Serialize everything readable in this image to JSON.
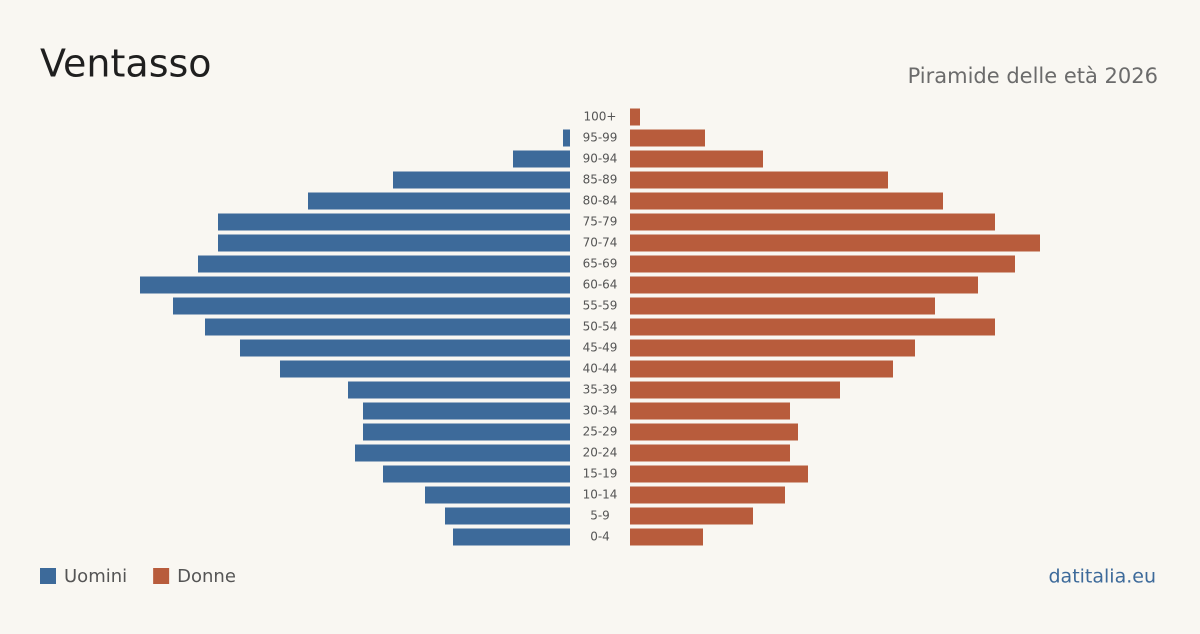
{
  "chart_data": {
    "type": "pyramid",
    "title": "Ventasso",
    "subtitle": "Piramide delle età 2026",
    "source": "datitalia.eu",
    "categories": [
      "100+",
      "95-99",
      "90-94",
      "85-89",
      "80-84",
      "75-79",
      "70-74",
      "65-69",
      "60-64",
      "55-59",
      "50-54",
      "45-49",
      "40-44",
      "35-39",
      "30-34",
      "25-29",
      "20-24",
      "15-19",
      "10-14",
      "5-9",
      "0-4"
    ],
    "series": [
      {
        "name": "Uomini",
        "color": "#3d6a9a",
        "values": [
          0,
          7,
          57,
          177,
          262,
          352,
          352,
          372,
          430,
          397,
          365,
          330,
          290,
          222,
          207,
          207,
          215,
          187,
          145,
          125,
          117
        ]
      },
      {
        "name": "Donne",
        "color": "#b85c3c",
        "values": [
          10,
          75,
          133,
          258,
          313,
          365,
          410,
          385,
          348,
          305,
          365,
          285,
          263,
          210,
          160,
          168,
          160,
          178,
          155,
          123,
          73
        ]
      }
    ],
    "xlim": [
      0,
      440
    ]
  }
}
